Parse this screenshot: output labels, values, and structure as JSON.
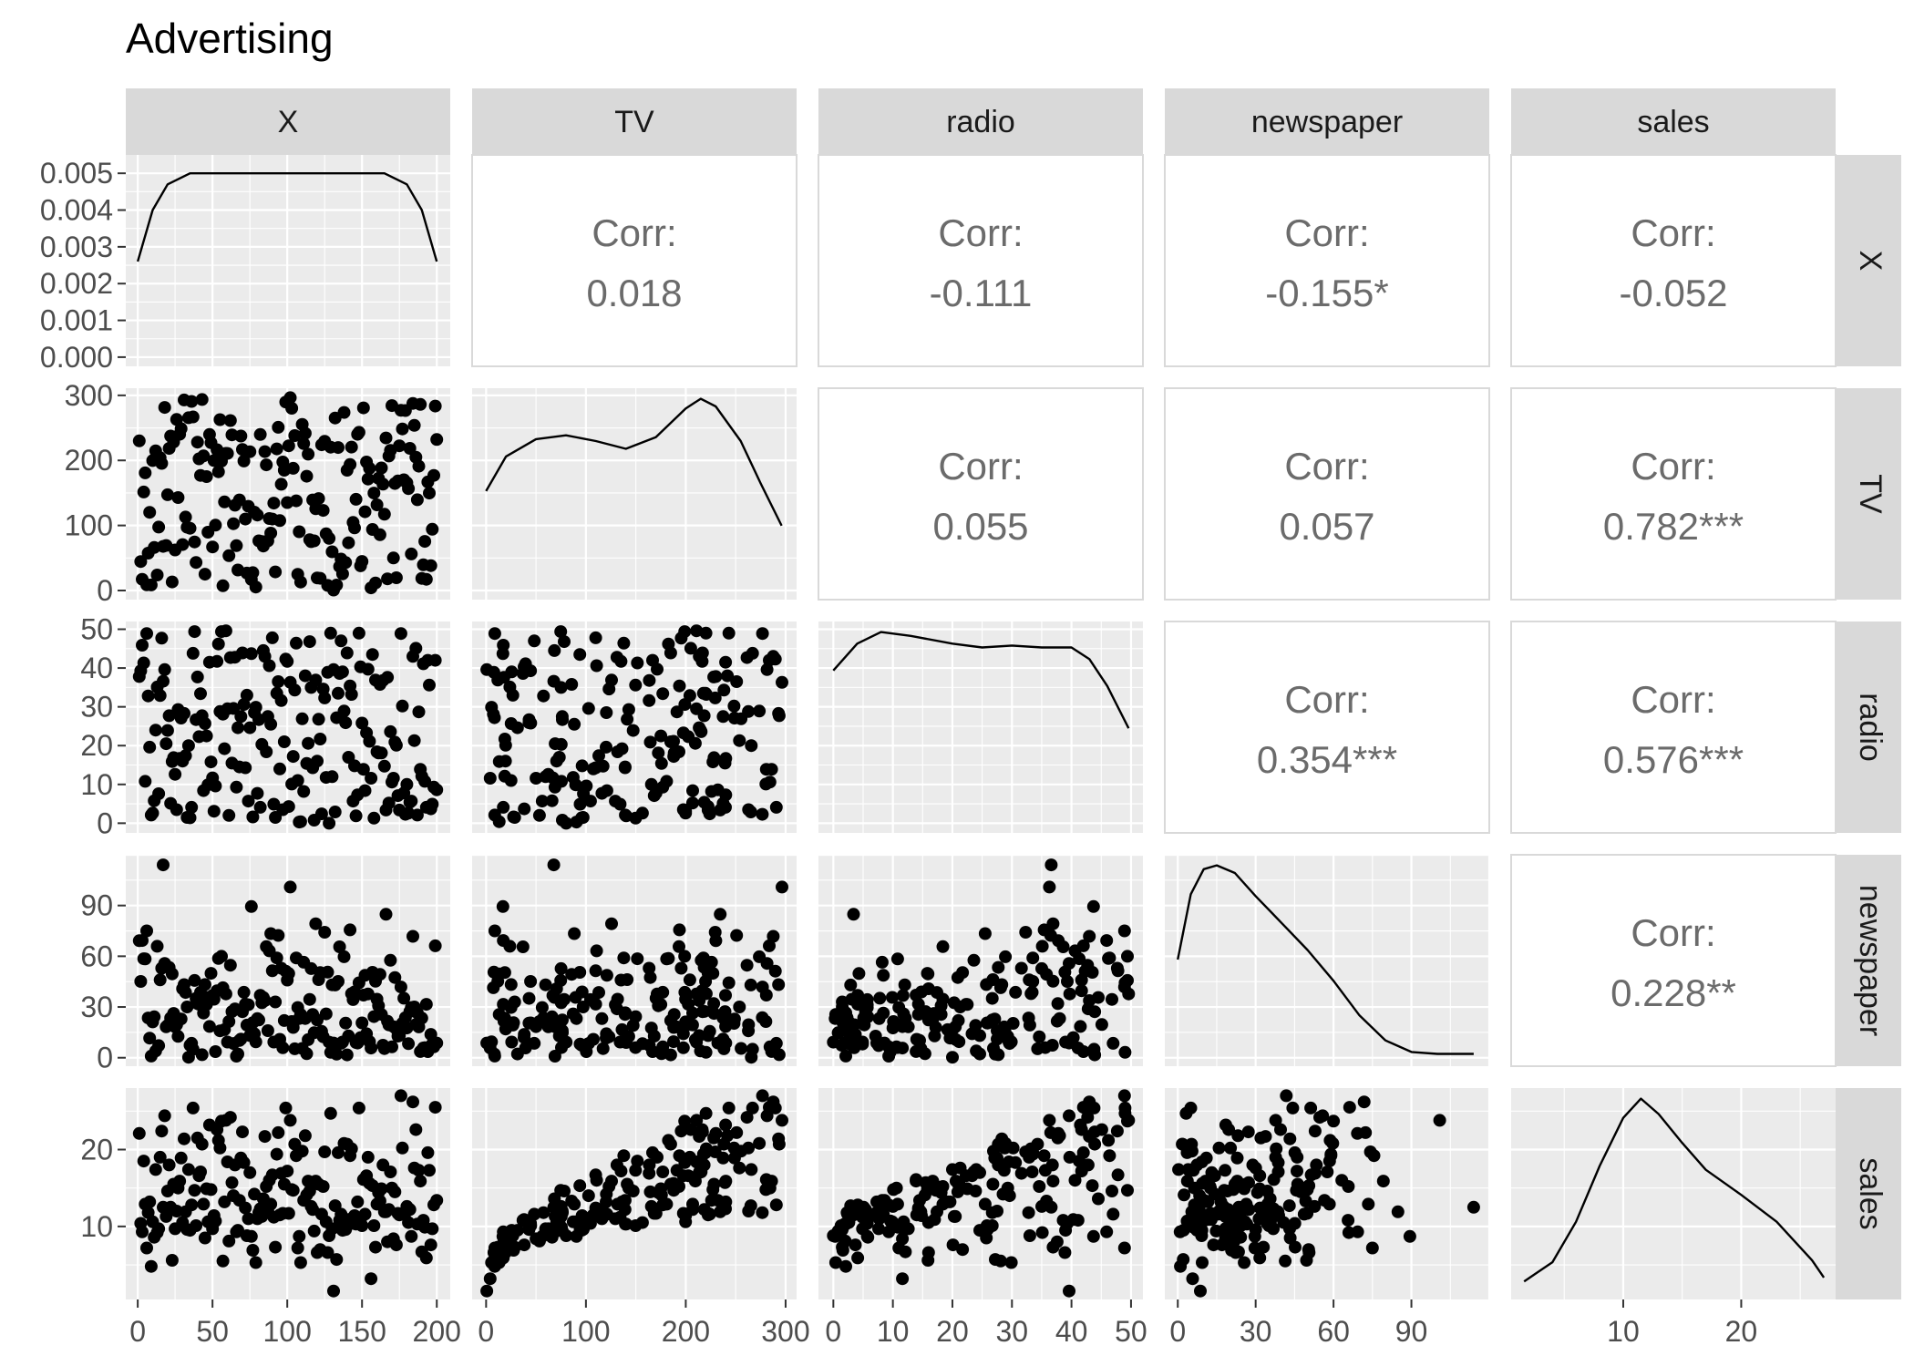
{
  "chart_data": {
    "type": "scatter",
    "title": "Advertising",
    "variables": [
      "X",
      "TV",
      "radio",
      "newspaper",
      "sales"
    ],
    "ranges": {
      "X": [
        -8,
        209
      ],
      "TV": [
        -14,
        311
      ],
      "radio": [
        -2.5,
        52
      ],
      "newspaper": [
        -5,
        120
      ],
      "sales": [
        0.5,
        28
      ]
    },
    "ticks": {
      "X": [
        "0",
        "50",
        "100",
        "150",
        "200"
      ],
      "TV": [
        "0",
        "100",
        "200",
        "300"
      ],
      "radio": [
        "0",
        "10",
        "20",
        "30",
        "40",
        "50"
      ],
      "newspaper": [
        "0",
        "30",
        "60",
        "90"
      ],
      "sales": [
        "10",
        "20"
      ],
      "density_X": [
        "0.000",
        "0.001",
        "0.002",
        "0.003",
        "0.004",
        "0.005"
      ],
      "density_X_range": [
        -0.00025,
        0.0055
      ]
    },
    "correlations": [
      {
        "row": "X",
        "col": "TV",
        "label": "Corr:",
        "value": "0.018"
      },
      {
        "row": "X",
        "col": "radio",
        "label": "Corr:",
        "value": "-0.111"
      },
      {
        "row": "X",
        "col": "newspaper",
        "label": "Corr:",
        "value": "-0.155*"
      },
      {
        "row": "X",
        "col": "sales",
        "label": "Corr:",
        "value": "-0.052"
      },
      {
        "row": "TV",
        "col": "radio",
        "label": "Corr:",
        "value": "0.055"
      },
      {
        "row": "TV",
        "col": "newspaper",
        "label": "Corr:",
        "value": "0.057"
      },
      {
        "row": "TV",
        "col": "sales",
        "label": "Corr:",
        "value": "0.782***"
      },
      {
        "row": "radio",
        "col": "newspaper",
        "label": "Corr:",
        "value": "0.354***"
      },
      {
        "row": "radio",
        "col": "sales",
        "label": "Corr:",
        "value": "0.576***"
      },
      {
        "row": "newspaper",
        "col": "sales",
        "label": "Corr:",
        "value": "0.228**"
      }
    ],
    "densities": {
      "X": [
        [
          0,
          0.0026
        ],
        [
          10,
          0.004
        ],
        [
          20,
          0.0047
        ],
        [
          35,
          0.005
        ],
        [
          60,
          0.005
        ],
        [
          100,
          0.005
        ],
        [
          140,
          0.005
        ],
        [
          165,
          0.005
        ],
        [
          180,
          0.0047
        ],
        [
          190,
          0.004
        ],
        [
          200,
          0.0026
        ]
      ],
      "TV": [
        [
          0,
          0.52
        ],
        [
          20,
          0.7
        ],
        [
          50,
          0.79
        ],
        [
          80,
          0.81
        ],
        [
          110,
          0.78
        ],
        [
          140,
          0.74
        ],
        [
          170,
          0.8
        ],
        [
          200,
          0.95
        ],
        [
          215,
          1.0
        ],
        [
          230,
          0.96
        ],
        [
          255,
          0.78
        ],
        [
          275,
          0.56
        ],
        [
          296,
          0.34
        ]
      ],
      "radio": [
        [
          0,
          0.8
        ],
        [
          4,
          0.94
        ],
        [
          8,
          1.0
        ],
        [
          13,
          0.98
        ],
        [
          20,
          0.94
        ],
        [
          25,
          0.92
        ],
        [
          30,
          0.93
        ],
        [
          35,
          0.92
        ],
        [
          40,
          0.92
        ],
        [
          43,
          0.86
        ],
        [
          46,
          0.72
        ],
        [
          49.6,
          0.5
        ]
      ],
      "newspaper": [
        [
          0,
          0.51
        ],
        [
          5,
          0.85
        ],
        [
          10,
          0.98
        ],
        [
          15,
          1.0
        ],
        [
          22,
          0.96
        ],
        [
          30,
          0.84
        ],
        [
          40,
          0.7
        ],
        [
          50,
          0.56
        ],
        [
          60,
          0.4
        ],
        [
          70,
          0.22
        ],
        [
          80,
          0.09
        ],
        [
          90,
          0.03
        ],
        [
          100,
          0.02
        ],
        [
          110,
          0.02
        ],
        [
          114,
          0.02
        ]
      ],
      "sales": [
        [
          1.6,
          0.05
        ],
        [
          4,
          0.15
        ],
        [
          6,
          0.36
        ],
        [
          8,
          0.65
        ],
        [
          10,
          0.9
        ],
        [
          11.5,
          1.0
        ],
        [
          13,
          0.92
        ],
        [
          15,
          0.77
        ],
        [
          17,
          0.63
        ],
        [
          20,
          0.5
        ],
        [
          23,
          0.36
        ],
        [
          26,
          0.16
        ],
        [
          27,
          0.07
        ]
      ]
    },
    "observations": {
      "X": [
        1,
        2,
        3,
        4,
        5,
        6,
        7,
        8,
        9,
        10,
        11,
        12,
        13,
        14,
        15,
        16,
        17,
        18,
        19,
        20,
        21,
        22,
        23,
        24,
        25,
        26,
        27,
        28,
        29,
        30,
        31,
        32,
        33,
        34,
        35,
        36,
        37,
        38,
        39,
        40,
        41,
        42,
        43,
        44,
        45,
        46,
        47,
        48,
        49,
        50,
        51,
        52,
        53,
        54,
        55,
        56,
        57,
        58,
        59,
        60,
        61,
        62,
        63,
        64,
        65,
        66,
        67,
        68,
        69,
        70,
        71,
        72,
        73,
        74,
        75,
        76,
        77,
        78,
        79,
        80,
        81,
        82,
        83,
        84,
        85,
        86,
        87,
        88,
        89,
        90,
        91,
        92,
        93,
        94,
        95,
        96,
        97,
        98,
        99,
        100,
        101,
        102,
        103,
        104,
        105,
        106,
        107,
        108,
        109,
        110,
        111,
        112,
        113,
        114,
        115,
        116,
        117,
        118,
        119,
        120,
        121,
        122,
        123,
        124,
        125,
        126,
        127,
        128,
        129,
        130,
        131,
        132,
        133,
        134,
        135,
        136,
        137,
        138,
        139,
        140,
        141,
        142,
        143,
        144,
        145,
        146,
        147,
        148,
        149,
        150,
        151,
        152,
        153,
        154,
        155,
        156,
        157,
        158,
        159,
        160,
        161,
        162,
        163,
        164,
        165,
        166,
        167,
        168,
        169,
        170,
        171,
        172,
        173,
        174,
        175,
        176,
        177,
        178,
        179,
        180,
        181,
        182,
        183,
        184,
        185,
        186,
        187,
        188,
        189,
        190,
        191,
        192,
        193,
        194,
        195,
        196,
        197,
        198,
        199,
        200
      ],
      "TV": [
        230.1,
        44.5,
        17.2,
        151.5,
        180.8,
        8.7,
        57.5,
        120.2,
        8.6,
        199.8,
        66.1,
        214.7,
        23.8,
        97.5,
        204.1,
        195.4,
        67.8,
        281.4,
        69.2,
        147.3,
        218.4,
        237.4,
        13.2,
        228.3,
        62.3,
        262.9,
        142.9,
        240.1,
        248.8,
        70.6,
        292.9,
        112.9,
        97.2,
        265.6,
        95.7,
        290.7,
        266.9,
        74.7,
        43.1,
        228.0,
        202.5,
        177.0,
        293.6,
        206.9,
        25.1,
        175.1,
        89.7,
        239.9,
        227.2,
        66.9,
        199.8,
        100.4,
        216.4,
        182.6,
        262.7,
        198.9,
        7.3,
        136.2,
        210.8,
        210.7,
        53.5,
        261.3,
        239.3,
        102.7,
        131.1,
        69.0,
        31.5,
        139.3,
        237.4,
        216.8,
        199.1,
        109.8,
        26.8,
        129.4,
        213.4,
        16.9,
        27.5,
        120.5,
        5.4,
        116.0,
        76.4,
        239.8,
        75.3,
        68.4,
        213.5,
        193.2,
        76.3,
        110.7,
        88.3,
        109.8,
        134.3,
        28.6,
        217.7,
        250.9,
        107.4,
        163.3,
        197.6,
        184.9,
        289.7,
        135.2,
        222.4,
        296.4,
        280.2,
        187.9,
        238.2,
        137.9,
        25.0,
        90.4,
        13.1,
        255.4,
        225.8,
        241.7,
        175.7,
        209.6,
        78.2,
        75.1,
        139.2,
        76.4,
        125.7,
        19.4,
        141.3,
        18.8,
        224.0,
        123.1,
        229.5,
        87.2,
        7.8,
        80.2,
        220.3,
        59.6,
        0.7,
        265.2,
        8.4,
        219.8,
        36.9,
        48.3,
        25.6,
        273.7,
        43.0,
        184.9,
        73.4,
        193.7,
        220.5,
        104.6,
        96.2,
        140.3,
        240.1,
        243.2,
        38.0,
        44.7,
        280.7,
        121.0,
        197.6,
        171.3,
        187.8,
        4.1,
        93.9,
        149.8,
        11.7,
        131.7,
        172.5,
        85.7,
        188.4,
        163.5,
        117.2,
        234.5,
        17.9,
        206.8,
        215.4,
        284.3,
        50.0,
        164.5,
        19.6,
        168.4,
        222.4,
        276.9,
        248.4,
        170.2,
        276.7,
        165.6,
        156.6,
        218.5,
        56.2,
        287.6,
        253.8,
        205.0,
        139.5,
        191.1,
        286.0,
        18.7,
        39.5,
        75.5,
        17.2,
        166.8,
        149.7,
        38.2,
        94.2,
        177.0,
        283.6,
        232.1
      ],
      "radio": [
        37.8,
        39.3,
        45.9,
        41.3,
        10.8,
        48.9,
        32.8,
        19.6,
        2.1,
        2.6,
        5.8,
        24.0,
        35.1,
        7.6,
        32.9,
        47.7,
        36.6,
        39.6,
        20.5,
        23.9,
        27.7,
        5.1,
        15.9,
        16.9,
        12.6,
        3.5,
        29.3,
        16.7,
        27.1,
        16.0,
        28.3,
        17.4,
        1.5,
        20.0,
        1.4,
        4.1,
        43.8,
        49.4,
        26.7,
        37.7,
        22.3,
        33.4,
        27.7,
        8.4,
        25.7,
        22.5,
        9.9,
        41.5,
        15.8,
        11.7,
        3.1,
        9.6,
        41.7,
        46.2,
        28.8,
        49.4,
        28.1,
        19.2,
        49.6,
        29.5,
        2.0,
        42.7,
        15.5,
        29.6,
        42.8,
        9.3,
        24.6,
        14.5,
        27.5,
        43.9,
        30.6,
        14.3,
        33.0,
        5.7,
        24.6,
        43.7,
        1.6,
        28.5,
        29.9,
        7.7,
        26.7,
        4.1,
        20.3,
        44.5,
        43.0,
        18.4,
        27.5,
        40.6,
        25.5,
        47.8,
        4.9,
        1.5,
        33.5,
        36.5,
        14.0,
        31.6,
        3.5,
        21.0,
        42.3,
        41.7,
        4.3,
        36.3,
        10.1,
        17.2,
        34.3,
        46.4,
        11.0,
        0.3,
        0.4,
        26.9,
        8.2,
        38.0,
        15.4,
        20.6,
        46.8,
        35.0,
        14.3,
        0.8,
        36.9,
        16.0,
        26.8,
        21.7,
        2.4,
        34.6,
        32.3,
        11.8,
        38.9,
        0.0,
        49.0,
        12.0,
        39.6,
        2.9,
        27.2,
        33.5,
        38.6,
        47.0,
        39.0,
        28.9,
        25.9,
        43.9,
        17.0,
        35.4,
        33.2,
        5.7,
        14.8,
        1.9,
        7.3,
        49.0,
        40.3,
        25.8,
        13.9,
        8.4,
        23.3,
        39.7,
        21.1,
        11.6,
        43.5,
        1.3,
        36.9,
        18.4,
        18.1,
        35.8,
        18.1,
        36.8,
        14.7,
        3.4,
        37.6,
        5.2,
        23.6,
        10.6,
        11.6,
        20.9,
        20.1,
        7.1,
        3.4,
        48.9,
        30.2,
        7.8,
        2.3,
        10.0,
        2.6,
        5.4,
        5.7,
        43.0,
        21.3,
        45.1,
        2.1,
        28.7,
        13.9,
        12.1,
        41.1,
        10.8,
        4.1,
        42.0,
        35.6,
        3.7,
        4.9,
        9.3,
        42.0,
        8.6
      ],
      "newspaper": [
        69.2,
        45.1,
        69.3,
        58.5,
        58.4,
        75.0,
        23.5,
        11.6,
        1.0,
        21.2,
        24.2,
        4.0,
        65.9,
        7.2,
        46.0,
        52.9,
        114.0,
        55.8,
        18.3,
        19.1,
        53.4,
        23.5,
        49.6,
        26.2,
        18.3,
        19.5,
        12.6,
        22.9,
        22.9,
        40.8,
        43.2,
        38.6,
        30.0,
        0.3,
        7.4,
        8.5,
        5.0,
        45.7,
        35.1,
        32.0,
        31.6,
        38.7,
        1.8,
        26.4,
        43.3,
        31.5,
        35.7,
        18.5,
        49.9,
        36.8,
        34.6,
        3.6,
        39.6,
        58.7,
        15.9,
        60.0,
        41.4,
        16.6,
        37.7,
        9.3,
        21.4,
        54.7,
        27.3,
        8.4,
        28.9,
        0.9,
        2.2,
        10.2,
        11.0,
        27.2,
        38.7,
        31.7,
        19.3,
        31.3,
        13.1,
        89.4,
        20.7,
        14.2,
        9.4,
        23.1,
        22.3,
        36.9,
        32.5,
        35.6,
        33.8,
        65.7,
        16.0,
        63.2,
        73.4,
        51.4,
        9.3,
        33.0,
        59.0,
        72.3,
        10.9,
        52.9,
        5.9,
        22.0,
        51.2,
        45.9,
        49.8,
        100.9,
        21.4,
        17.9,
        5.3,
        59.0,
        29.7,
        23.2,
        25.6,
        5.5,
        56.5,
        23.2,
        2.4,
        10.7,
        34.5,
        52.7,
        25.6,
        14.8,
        79.2,
        22.3,
        46.2,
        50.4,
        15.6,
        12.4,
        74.2,
        25.9,
        50.6,
        9.2,
        3.2,
        43.1,
        8.7,
        43.0,
        2.1,
        45.1,
        65.6,
        8.5,
        9.3,
        59.7,
        20.5,
        1.7,
        12.9,
        75.6,
        37.9,
        34.4,
        38.9,
        9.0,
        8.7,
        44.3,
        11.9,
        20.6,
        37.0,
        48.7,
        14.2,
        37.7,
        9.5,
        5.7,
        50.5,
        24.3,
        45.2,
        34.6,
        30.7,
        49.3,
        25.6,
        7.4,
        5.4,
        84.8,
        21.6,
        19.4,
        57.6,
        6.4,
        18.4,
        47.4,
        17.0,
        12.8,
        13.1,
        41.8,
        20.3,
        35.2,
        23.7,
        17.6,
        8.3,
        27.4,
        29.7,
        71.8,
        30.0,
        19.6,
        26.6,
        18.2,
        3.7,
        23.4,
        5.8,
        6.0,
        31.6,
        3.6,
        6.0,
        13.8,
        8.1,
        6.4,
        66.2,
        8.7
      ],
      "sales": [
        22.1,
        10.4,
        9.3,
        18.5,
        12.9,
        7.2,
        11.8,
        13.2,
        4.8,
        10.6,
        8.6,
        17.4,
        9.2,
        9.7,
        19.0,
        22.4,
        12.5,
        24.4,
        11.3,
        14.6,
        18.0,
        12.5,
        5.6,
        15.5,
        9.7,
        12.0,
        15.0,
        15.9,
        18.9,
        10.5,
        21.4,
        11.9,
        9.6,
        17.4,
        9.5,
        12.8,
        25.4,
        14.7,
        10.1,
        21.5,
        16.6,
        17.1,
        20.7,
        12.9,
        8.5,
        14.9,
        10.6,
        23.2,
        14.8,
        9.7,
        11.4,
        10.7,
        22.6,
        21.2,
        20.2,
        23.7,
        5.5,
        13.2,
        23.8,
        18.4,
        8.1,
        24.2,
        15.7,
        14.0,
        18.0,
        9.3,
        9.5,
        13.4,
        18.9,
        22.3,
        18.3,
        12.4,
        8.8,
        11.0,
        17.0,
        8.7,
        6.9,
        14.2,
        5.3,
        11.0,
        11.8,
        12.3,
        11.3,
        13.6,
        21.7,
        15.2,
        12.0,
        16.0,
        12.9,
        16.7,
        11.2,
        7.3,
        19.4,
        22.2,
        11.5,
        16.9,
        11.7,
        15.5,
        25.4,
        17.2,
        11.7,
        23.8,
        14.8,
        14.7,
        20.7,
        19.2,
        7.2,
        8.7,
        5.3,
        19.8,
        13.4,
        21.8,
        14.1,
        15.9,
        14.6,
        12.6,
        12.2,
        9.4,
        15.9,
        6.6,
        15.5,
        7.0,
        11.6,
        15.2,
        19.7,
        10.6,
        6.6,
        8.8,
        24.7,
        9.7,
        1.6,
        12.7,
        5.7,
        19.6,
        10.8,
        11.6,
        9.5,
        20.8,
        9.6,
        20.7,
        10.9,
        19.2,
        20.1,
        10.4,
        11.4,
        10.3,
        13.2,
        25.4,
        10.9,
        10.1,
        16.1,
        11.6,
        16.6,
        19.0,
        15.6,
        3.2,
        15.3,
        10.1,
        7.3,
        12.9,
        14.4,
        13.3,
        14.9,
        18.0,
        11.9,
        11.9,
        8.0,
        12.2,
        17.1,
        15.0,
        8.4,
        14.5,
        7.6,
        11.7,
        11.5,
        27.0,
        20.2,
        11.7,
        11.8,
        12.6,
        10.5,
        12.2,
        8.7,
        26.2,
        17.6,
        22.6,
        10.3,
        17.3,
        15.9,
        6.7,
        10.8,
        9.9,
        5.9,
        19.6,
        17.3,
        7.6,
        9.7,
        12.8,
        25.5,
        13.4
      ]
    }
  }
}
